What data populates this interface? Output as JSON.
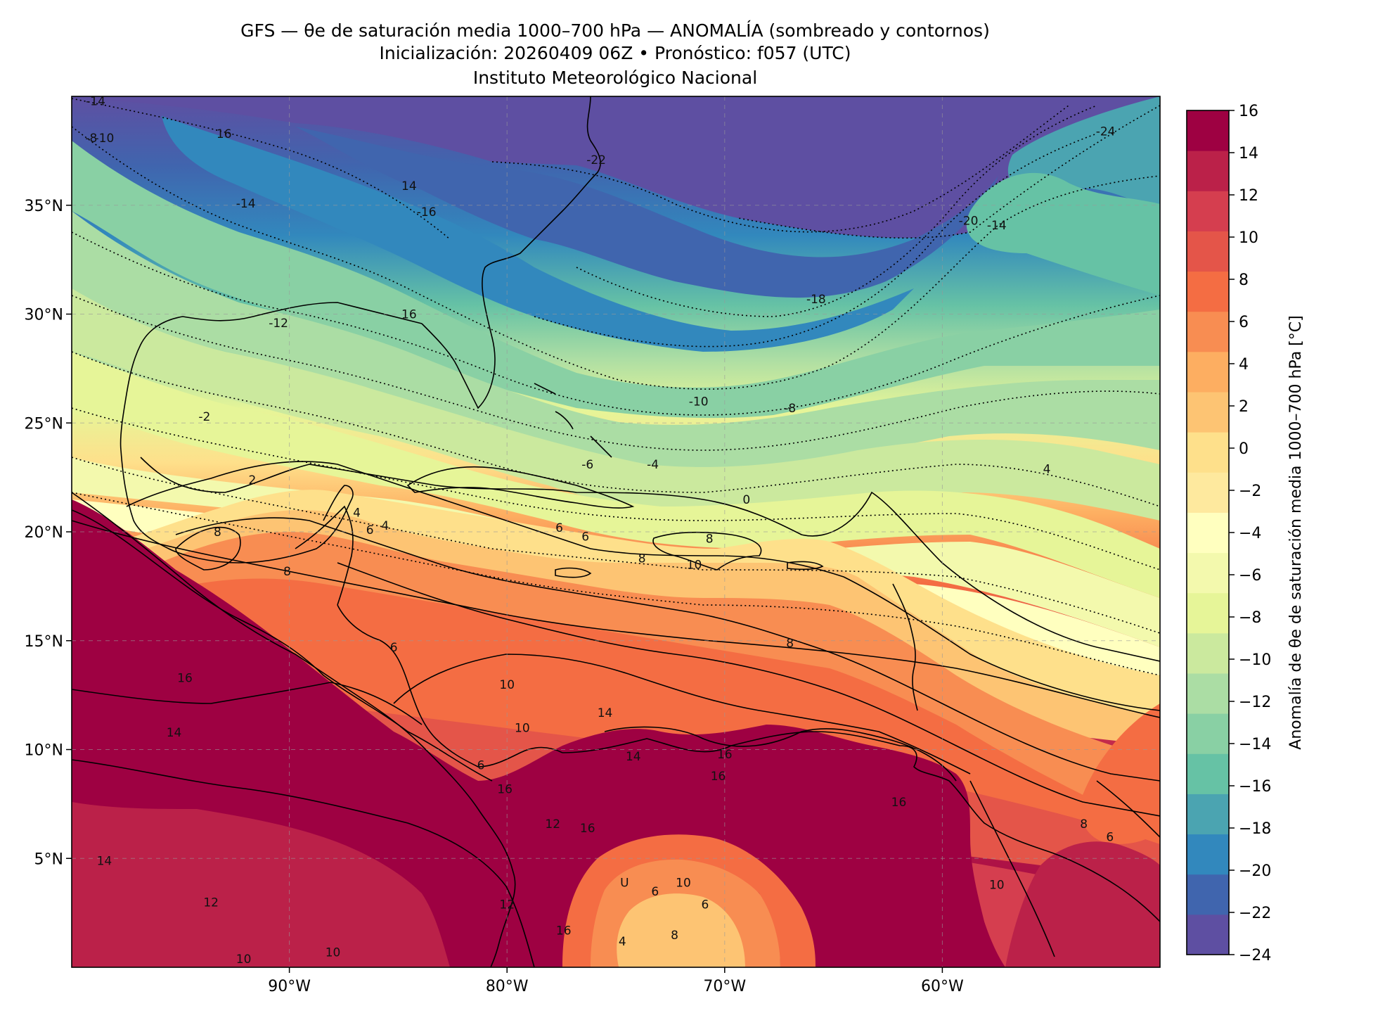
{
  "title": {
    "line1": "GFS — θe de saturación media 1000–700 hPa — ANOMALÍA (sombreado y contornos)",
    "line2": "Inicialización: 20260409 06Z   •   Pronóstico: f057 (UTC)",
    "line3": "Instituto Meteorológico Nacional"
  },
  "map": {
    "lat_ticks": [
      {
        "value": 35,
        "label": "35°N"
      },
      {
        "value": 30,
        "label": "30°N"
      },
      {
        "value": 25,
        "label": "25°N"
      },
      {
        "value": 20,
        "label": "20°N"
      },
      {
        "value": 15,
        "label": "15°N"
      },
      {
        "value": 10,
        "label": "10°N"
      },
      {
        "value": 5,
        "label": "5°N"
      }
    ],
    "lon_ticks": [
      {
        "value": -90,
        "label": "90°W"
      },
      {
        "value": -80,
        "label": "80°W"
      },
      {
        "value": -70,
        "label": "70°W"
      },
      {
        "value": -60,
        "label": "60°W"
      }
    ],
    "extent": {
      "lon_min": -100,
      "lon_max": -50,
      "lat_min": 0,
      "lat_max": 40
    },
    "gridlines": true,
    "contour_labels": [
      {
        "lon": -98.9,
        "lat": 39.6,
        "text": "-14"
      },
      {
        "lon": -99.1,
        "lat": 37.9,
        "text": "-8"
      },
      {
        "lon": -98.5,
        "lat": 37.9,
        "text": "-10"
      },
      {
        "lon": -93.0,
        "lat": 38.1,
        "text": "16"
      },
      {
        "lon": -92.0,
        "lat": 34.9,
        "text": "-14"
      },
      {
        "lon": -84.5,
        "lat": 35.7,
        "text": "14"
      },
      {
        "lon": -83.7,
        "lat": 34.5,
        "text": "-16"
      },
      {
        "lon": -75.9,
        "lat": 36.9,
        "text": "-22"
      },
      {
        "lon": -52.5,
        "lat": 38.2,
        "text": "-24"
      },
      {
        "lon": -58.8,
        "lat": 34.1,
        "text": "-20"
      },
      {
        "lon": -57.5,
        "lat": 33.9,
        "text": "-14"
      },
      {
        "lon": -65.8,
        "lat": 30.5,
        "text": "-18"
      },
      {
        "lon": -90.5,
        "lat": 29.4,
        "text": "-12"
      },
      {
        "lon": -84.5,
        "lat": 29.8,
        "text": "16"
      },
      {
        "lon": -71.2,
        "lat": 25.8,
        "text": "-10"
      },
      {
        "lon": -67.0,
        "lat": 25.5,
        "text": "-8"
      },
      {
        "lon": -93.9,
        "lat": 25.1,
        "text": "-2"
      },
      {
        "lon": -76.3,
        "lat": 22.9,
        "text": "-6"
      },
      {
        "lon": -73.3,
        "lat": 22.9,
        "text": "-4"
      },
      {
        "lon": -55.2,
        "lat": 22.7,
        "text": "4"
      },
      {
        "lon": -91.7,
        "lat": 22.2,
        "text": "2"
      },
      {
        "lon": -69.0,
        "lat": 21.3,
        "text": "0"
      },
      {
        "lon": -86.9,
        "lat": 20.7,
        "text": "4"
      },
      {
        "lon": -85.6,
        "lat": 20.1,
        "text": "4"
      },
      {
        "lon": -93.3,
        "lat": 19.8,
        "text": "8"
      },
      {
        "lon": -86.3,
        "lat": 19.9,
        "text": "6"
      },
      {
        "lon": -77.6,
        "lat": 20.0,
        "text": "6"
      },
      {
        "lon": -76.4,
        "lat": 19.6,
        "text": "6"
      },
      {
        "lon": -70.7,
        "lat": 19.5,
        "text": "8"
      },
      {
        "lon": -73.8,
        "lat": 18.6,
        "text": "8"
      },
      {
        "lon": -71.4,
        "lat": 18.3,
        "text": "10"
      },
      {
        "lon": -90.1,
        "lat": 18.0,
        "text": "8"
      },
      {
        "lon": -67.0,
        "lat": 14.7,
        "text": "8"
      },
      {
        "lon": -85.2,
        "lat": 14.5,
        "text": "6"
      },
      {
        "lon": -94.8,
        "lat": 13.1,
        "text": "16"
      },
      {
        "lon": -80.0,
        "lat": 12.8,
        "text": "10"
      },
      {
        "lon": -75.5,
        "lat": 11.5,
        "text": "14"
      },
      {
        "lon": -79.3,
        "lat": 10.8,
        "text": "10"
      },
      {
        "lon": -95.3,
        "lat": 10.6,
        "text": "14"
      },
      {
        "lon": -74.2,
        "lat": 9.5,
        "text": "14"
      },
      {
        "lon": -70.0,
        "lat": 9.6,
        "text": "16"
      },
      {
        "lon": -70.3,
        "lat": 8.6,
        "text": "16"
      },
      {
        "lon": -81.2,
        "lat": 9.1,
        "text": "6"
      },
      {
        "lon": -80.1,
        "lat": 8.0,
        "text": "16"
      },
      {
        "lon": -62.0,
        "lat": 7.4,
        "text": "16"
      },
      {
        "lon": -77.9,
        "lat": 6.4,
        "text": "12"
      },
      {
        "lon": -76.3,
        "lat": 6.2,
        "text": "16"
      },
      {
        "lon": -53.5,
        "lat": 6.4,
        "text": "8"
      },
      {
        "lon": -52.3,
        "lat": 5.8,
        "text": "6"
      },
      {
        "lon": -98.5,
        "lat": 4.7,
        "text": "14"
      },
      {
        "lon": -74.6,
        "lat": 3.7,
        "text": "U"
      },
      {
        "lon": -71.9,
        "lat": 3.7,
        "text": "10"
      },
      {
        "lon": -57.5,
        "lat": 3.6,
        "text": "10"
      },
      {
        "lon": -73.2,
        "lat": 3.3,
        "text": "6"
      },
      {
        "lon": -93.6,
        "lat": 2.8,
        "text": "12"
      },
      {
        "lon": -80.0,
        "lat": 2.7,
        "text": "12"
      },
      {
        "lon": -70.9,
        "lat": 2.7,
        "text": "6"
      },
      {
        "lon": -72.3,
        "lat": 1.3,
        "text": "8"
      },
      {
        "lon": -77.4,
        "lat": 1.5,
        "text": "16"
      },
      {
        "lon": -74.7,
        "lat": 1.0,
        "text": "4"
      },
      {
        "lon": -88.0,
        "lat": 0.5,
        "text": "10"
      },
      {
        "lon": -92.1,
        "lat": 0.2,
        "text": "10"
      }
    ]
  },
  "colorbar": {
    "label": "Anomalía de θe de saturación media 1000–700 hPa [°C]",
    "min": -24,
    "max": 16,
    "ticks": [
      "16",
      "14",
      "12",
      "10",
      "8",
      "6",
      "4",
      "2",
      "0",
      "−2",
      "−4",
      "−6",
      "−8",
      "−10",
      "−12",
      "−14",
      "−16",
      "−18",
      "−20",
      "−22",
      "−24"
    ],
    "colors": [
      "#5e4fa2",
      "#4065ae",
      "#3288bd",
      "#4ba4b1",
      "#66c2a5",
      "#89d0a4",
      "#abdda4",
      "#cbe99e",
      "#e6f598",
      "#f3f9ad",
      "#ffffbf",
      "#fee99e",
      "#fee08b",
      "#fdc473",
      "#fdae61",
      "#f88d52",
      "#f46d43",
      "#e45549",
      "#d53e4f",
      "#bb2149",
      "#9e0142"
    ]
  }
}
